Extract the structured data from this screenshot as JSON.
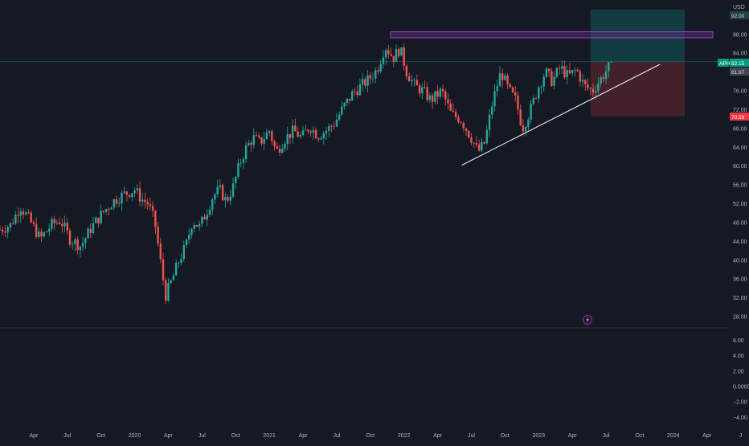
{
  "currency": "USD",
  "symbol": "APH",
  "last_price": "82.15",
  "countdown_price": "81.97",
  "stop_price": "70.59",
  "target_price": "92.00",
  "event_icon": "lightning-icon",
  "colors": {
    "background": "#151924",
    "up": "#26a69a",
    "down": "#ef5350",
    "target_zone": "#134345",
    "stop_zone": "#4a2429",
    "resistance_zone": "#6a2a8c",
    "trendline": "#e8e8e8",
    "axis_text": "#b2b5be",
    "price_label": "#089981",
    "stop_label": "#f23645"
  },
  "chart_data": {
    "type": "candlestick",
    "symbol": "APH",
    "price_axis": [
      {
        "value": 92,
        "label": "92.00"
      },
      {
        "value": 88,
        "label": "88.00"
      },
      {
        "value": 84,
        "label": "84.00"
      },
      {
        "value": 76,
        "label": "76.00"
      },
      {
        "value": 72,
        "label": "72.00"
      },
      {
        "value": 68,
        "label": "68.00"
      },
      {
        "value": 64,
        "label": "64.00"
      },
      {
        "value": 60,
        "label": "60.00"
      },
      {
        "value": 56,
        "label": "56.00"
      },
      {
        "value": 52,
        "label": "52.00"
      },
      {
        "value": 48,
        "label": "48.00"
      },
      {
        "value": 44,
        "label": "44.00"
      },
      {
        "value": 40,
        "label": "40.00"
      },
      {
        "value": 36,
        "label": "36.00"
      },
      {
        "value": 32,
        "label": "32.00"
      },
      {
        "value": 28,
        "label": "28.00"
      }
    ],
    "indicator_axis": [
      {
        "value": 6,
        "label": "6.00"
      },
      {
        "value": 4,
        "label": "4.00"
      },
      {
        "value": 2,
        "label": "2.00"
      },
      {
        "value": 0,
        "label": "0.0000"
      },
      {
        "value": -2,
        "label": "−2.00"
      },
      {
        "value": -4,
        "label": "−4.00"
      }
    ],
    "time_axis": [
      {
        "label": "Apr",
        "t": 2019.25
      },
      {
        "label": "Jul",
        "t": 2019.5
      },
      {
        "label": "Oct",
        "t": 2019.75
      },
      {
        "label": "2020",
        "t": 2020.0
      },
      {
        "label": "Apr",
        "t": 2020.25
      },
      {
        "label": "Jul",
        "t": 2020.5
      },
      {
        "label": "Oct",
        "t": 2020.75
      },
      {
        "label": "2021",
        "t": 2021.0
      },
      {
        "label": "Apr",
        "t": 2021.25
      },
      {
        "label": "Jul",
        "t": 2021.5
      },
      {
        "label": "Oct",
        "t": 2021.75
      },
      {
        "label": "2022",
        "t": 2022.0
      },
      {
        "label": "Apr",
        "t": 2022.25
      },
      {
        "label": "Jul",
        "t": 2022.5
      },
      {
        "label": "Oct",
        "t": 2022.75
      },
      {
        "label": "2023",
        "t": 2023.0
      },
      {
        "label": "Apr",
        "t": 2023.25
      },
      {
        "label": "Jul",
        "t": 2023.5
      },
      {
        "label": "Oct",
        "t": 2023.75
      },
      {
        "label": "2024",
        "t": 2024.0
      },
      {
        "label": "Apr",
        "t": 2024.25
      },
      {
        "label": "J",
        "t": 2024.5
      }
    ],
    "price_path": [
      [
        2019.0,
        46.5
      ],
      [
        2019.08,
        47.5
      ],
      [
        2019.15,
        51.5
      ],
      [
        2019.22,
        48.5
      ],
      [
        2019.3,
        44.5
      ],
      [
        2019.38,
        47.5
      ],
      [
        2019.45,
        48.5
      ],
      [
        2019.52,
        44.5
      ],
      [
        2019.6,
        43.0
      ],
      [
        2019.68,
        47.0
      ],
      [
        2019.76,
        50.0
      ],
      [
        2019.84,
        52.5
      ],
      [
        2019.92,
        54.0
      ],
      [
        2020.0,
        55.0
      ],
      [
        2020.05,
        53.0
      ],
      [
        2020.1,
        52.0
      ],
      [
        2020.15,
        48.0
      ],
      [
        2020.2,
        38.0
      ],
      [
        2020.23,
        32.5
      ],
      [
        2020.28,
        36.0
      ],
      [
        2020.33,
        40.0
      ],
      [
        2020.38,
        43.0
      ],
      [
        2020.43,
        48.5
      ],
      [
        2020.48,
        47.0
      ],
      [
        2020.53,
        50.0
      ],
      [
        2020.58,
        53.5
      ],
      [
        2020.63,
        55.0
      ],
      [
        2020.68,
        52.5
      ],
      [
        2020.73,
        55.5
      ],
      [
        2020.78,
        60.5
      ],
      [
        2020.83,
        64.0
      ],
      [
        2020.88,
        66.0
      ],
      [
        2020.93,
        65.0
      ],
      [
        2021.0,
        67.5
      ],
      [
        2021.05,
        63.0
      ],
      [
        2021.12,
        66.0
      ],
      [
        2021.18,
        67.5
      ],
      [
        2021.24,
        66.0
      ],
      [
        2021.3,
        68.5
      ],
      [
        2021.36,
        66.5
      ],
      [
        2021.42,
        67.5
      ],
      [
        2021.48,
        69.0
      ],
      [
        2021.55,
        72.5
      ],
      [
        2021.62,
        75.5
      ],
      [
        2021.68,
        77.0
      ],
      [
        2021.74,
        78.5
      ],
      [
        2021.8,
        80.5
      ],
      [
        2021.86,
        85.5
      ],
      [
        2021.92,
        83.0
      ],
      [
        2021.97,
        85.0
      ],
      [
        2022.02,
        80.0
      ],
      [
        2022.08,
        77.0
      ],
      [
        2022.14,
        76.0
      ],
      [
        2022.2,
        74.0
      ],
      [
        2022.28,
        76.0
      ],
      [
        2022.35,
        71.0
      ],
      [
        2022.42,
        70.0
      ],
      [
        2022.5,
        66.0
      ],
      [
        2022.55,
        63.0
      ],
      [
        2022.6,
        65.0
      ],
      [
        2022.66,
        74.0
      ],
      [
        2022.72,
        80.0
      ],
      [
        2022.78,
        76.0
      ],
      [
        2022.83,
        74.0
      ],
      [
        2022.88,
        68.0
      ],
      [
        2022.94,
        72.0
      ],
      [
        2023.0,
        77.0
      ],
      [
        2023.05,
        80.0
      ],
      [
        2023.1,
        78.0
      ],
      [
        2023.16,
        81.0
      ],
      [
        2023.22,
        79.0
      ],
      [
        2023.28,
        80.5
      ],
      [
        2023.34,
        77.0
      ],
      [
        2023.4,
        76.0
      ],
      [
        2023.46,
        78.5
      ],
      [
        2023.52,
        81.0
      ],
      [
        2023.54,
        82.15
      ]
    ],
    "levels": {
      "last": 82.15,
      "stop": 70.59,
      "target": 92.0,
      "resistance_top": 88.6,
      "resistance_bottom": 87.3
    },
    "trendline": {
      "start": [
        2022.43,
        60.2
      ],
      "end": [
        2023.9,
        81.6
      ]
    }
  }
}
